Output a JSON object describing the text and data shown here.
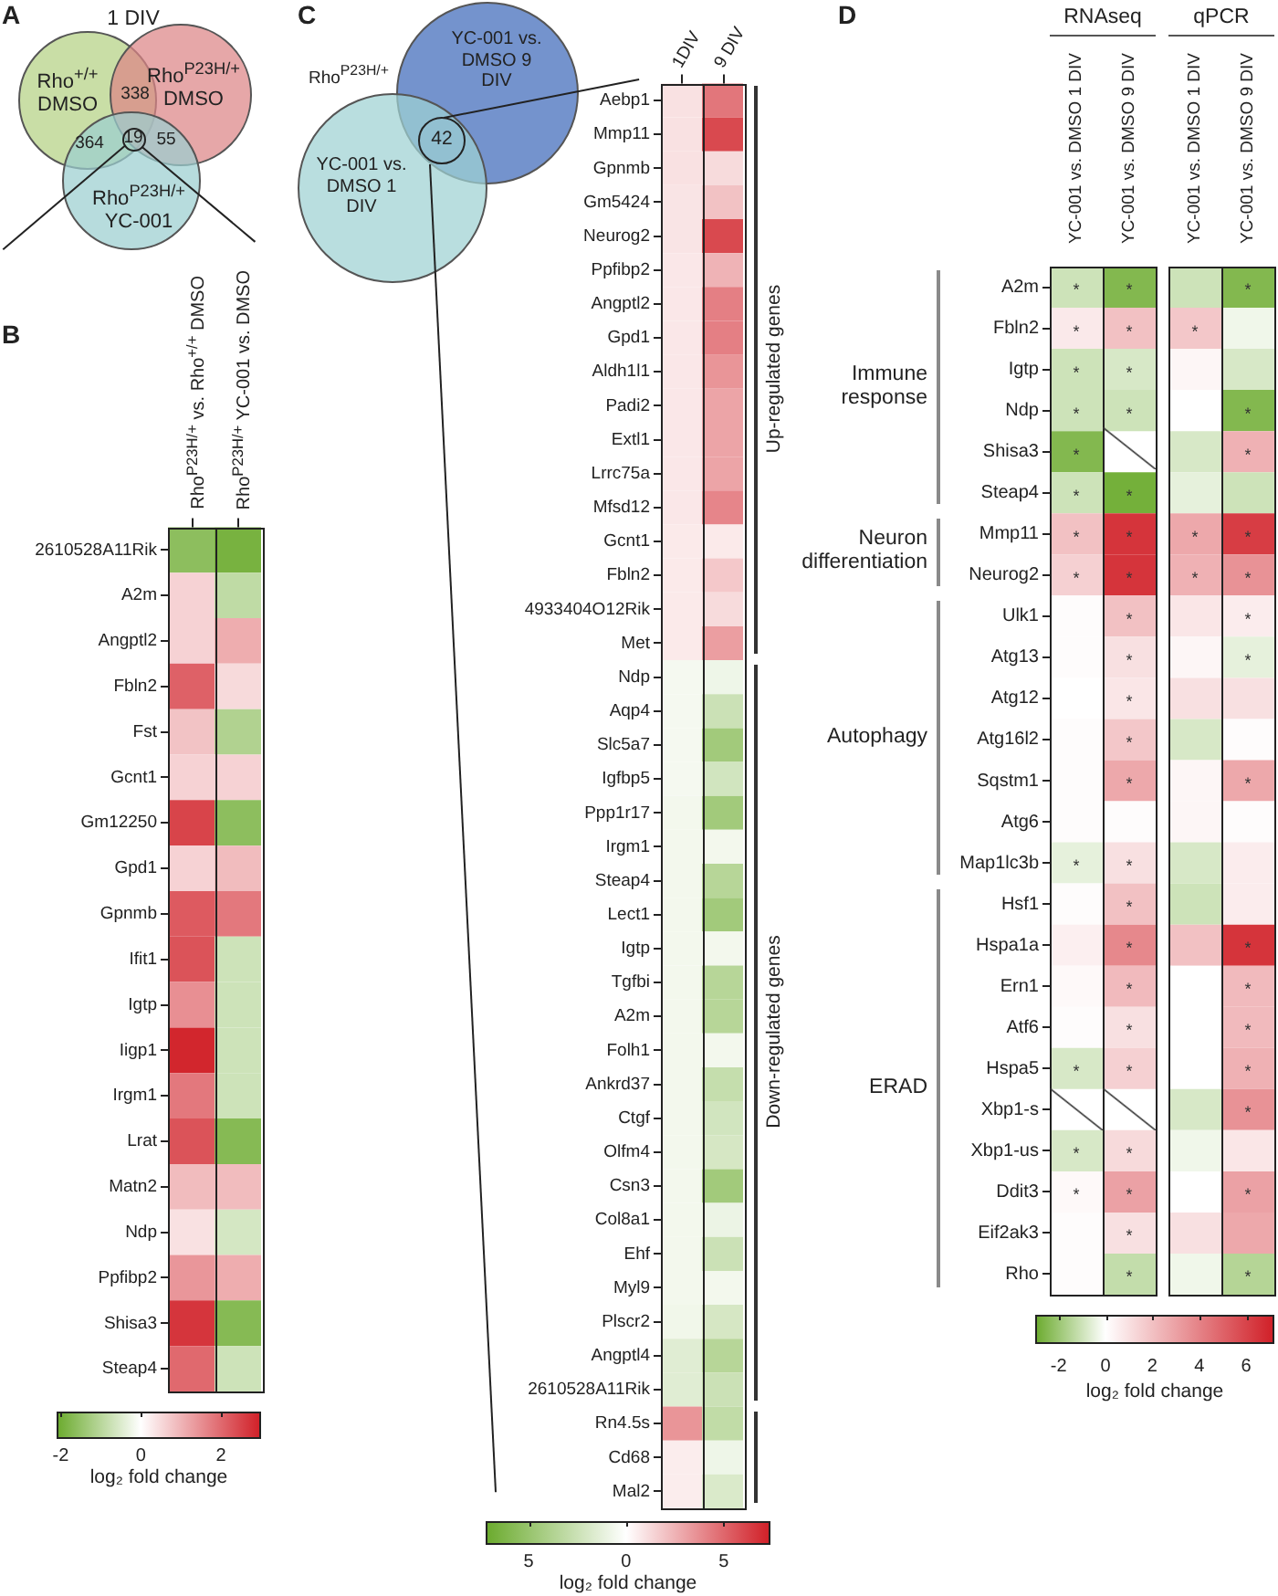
{
  "chart_data": [
    {
      "type": "other",
      "title": "1 DIV",
      "categories": [
        "Rho$^{+/+}$ DMSO",
        "Rho$^{P23H/+}$ DMSO",
        "Rho$^{P23H/+}$ YC-001"
      ],
      "colors": [
        "#c9dea6",
        "#e6a7a8",
        "#b7dcdd"
      ],
      "annotations": [
        "A",
        "338",
        "364",
        "55",
        "19"
      ]
    },
    {
      "type": "heatmap",
      "categories": [
        "Rho$^{P23H/+}$ vs. Rho$^{+/+}$ DMSO",
        "Rho$^{P23H/+}$ YC-001 vs. DMSO"
      ],
      "y_categories": [
        "2610528A11Rik",
        "A2m",
        "Angptl2",
        "Fbln2",
        "Fst",
        "Gcnt1",
        "Gm12250",
        "Gpd1",
        "Gpnmb",
        "Ifit1",
        "Igtp",
        "Iigp1",
        "Irgm1",
        "Lrat",
        "Matn2",
        "Ndp",
        "Ppfibp2",
        "Shisa3",
        "Steap4"
      ],
      "cells": [
        [
          -1.6,
          -1.9
        ],
        [
          0.6,
          -0.9
        ],
        [
          0.6,
          1.1
        ],
        [
          2.1,
          0.5
        ],
        [
          0.8,
          -1.1
        ],
        [
          0.6,
          0.6
        ],
        [
          2.5,
          -1.6
        ],
        [
          0.6,
          0.9
        ],
        [
          2.2,
          1.8
        ],
        [
          2.3,
          -0.7
        ],
        [
          1.5,
          -0.7
        ],
        [
          2.9,
          -0.7
        ],
        [
          1.8,
          -0.7
        ],
        [
          2.3,
          -1.7
        ],
        [
          0.9,
          0.9
        ],
        [
          0.4,
          -0.6
        ],
        [
          1.4,
          1.1
        ],
        [
          2.7,
          -1.7
        ],
        [
          2,
          -0.7
        ]
      ],
      "clim": [
        -2.1,
        3
      ],
      "cticks": [
        -2,
        0,
        2
      ],
      "clabel": "log₂ fold change",
      "annotations": [
        "B"
      ]
    },
    {
      "type": "other",
      "title": "Rho$^{P23H/+}$",
      "categories": [
        "YC-001 vs. DMSO 9 DIV",
        "YC-001 vs. DMSO 1 DIV"
      ],
      "colors": [
        "#7594cd",
        "#b9dedf"
      ],
      "annotations": [
        "C",
        "42"
      ]
    },
    {
      "type": "heatmap",
      "categories": [
        "1DIV",
        "9 DIV"
      ],
      "y_categories": [
        "Aebp1",
        "Mmp11",
        "Gpnmb",
        "Gm5424",
        "Neurog2",
        "Ppfibp2",
        "Angptl2",
        "Gpd1",
        "Aldh1l1",
        "Padi2",
        "Extl1",
        "Lrrc75a",
        "Mfsd12",
        "Gcnt1",
        "Fbln2",
        "4933404O12Rik",
        "Met",
        "Ndp",
        "Aqp4",
        "Slc5a7",
        "Igfbp5",
        "Ppp1r17",
        "Irgm1",
        "Steap4",
        "Lect1",
        "Igtp",
        "Tgfbi",
        "A2m",
        "Folh1",
        "Ankrd37",
        "Ctgf",
        "Olfm4",
        "Csn3",
        "Col8a1",
        "Ehf",
        "Myl9",
        "Plscr2",
        "Angptl4",
        "2610528A11Rik",
        "Rn4.5s",
        "Cd68",
        "Mal2"
      ],
      "cells": [
        [
          1,
          4.5
        ],
        [
          1,
          6
        ],
        [
          1,
          1.2
        ],
        [
          0.9,
          2
        ],
        [
          0.9,
          6
        ],
        [
          0.8,
          2.5
        ],
        [
          0.8,
          4.2
        ],
        [
          0.8,
          4.2
        ],
        [
          0.8,
          3.5
        ],
        [
          0.8,
          3
        ],
        [
          0.8,
          3
        ],
        [
          0.8,
          3
        ],
        [
          0.8,
          4
        ],
        [
          0.7,
          0.7
        ],
        [
          0.7,
          1.8
        ],
        [
          0.7,
          1.2
        ],
        [
          0.7,
          3.2
        ],
        [
          -0.5,
          -0.8
        ],
        [
          -0.5,
          -2.5
        ],
        [
          -0.5,
          -4.5
        ],
        [
          -0.5,
          -2.2
        ],
        [
          -0.6,
          -4.5
        ],
        [
          -0.6,
          -0.6
        ],
        [
          -0.6,
          -3.5
        ],
        [
          -0.6,
          -4.5
        ],
        [
          -0.6,
          -0.6
        ],
        [
          -0.6,
          -3.5
        ],
        [
          -0.6,
          -3.5
        ],
        [
          -0.6,
          -0.6
        ],
        [
          -0.6,
          -2.8
        ],
        [
          -0.6,
          -2.2
        ],
        [
          -0.6,
          -2
        ],
        [
          -0.6,
          -4.5
        ],
        [
          -0.6,
          -0.9
        ],
        [
          -0.6,
          -2.5
        ],
        [
          -0.6,
          -0.6
        ],
        [
          -0.7,
          -2
        ],
        [
          -1.5,
          -3.5
        ],
        [
          -1.5,
          -2.5
        ],
        [
          3.5,
          -3
        ],
        [
          0.6,
          -0.8
        ],
        [
          0.6,
          -1.8
        ]
      ],
      "clim": [
        -7.2,
        7.4
      ],
      "cticks": [
        {
          "value": -5,
          "label": "5"
        },
        0,
        5
      ],
      "clabel": "log₂ fold change",
      "annotations": [
        "Up-regulated genes",
        "Down-regulated genes"
      ]
    },
    {
      "type": "heatmap",
      "categories": [
        "YC-001 vs. DMSO 1 DIV",
        "YC-001 vs. DMSO 9 DIV",
        "YC-001 vs. DMSO 1 DIV",
        "YC-001 vs. DMSO 9 DIV"
      ],
      "y_categories": [
        "A2m",
        "Fbln2",
        "Igtp",
        "Ndp",
        "Shisa3",
        "Steap4",
        "Mmp11",
        "Neurog2",
        "Ulk1",
        "Atg13",
        "Atg12",
        "Atg16l2",
        "Sqstm1",
        "Atg6",
        "Map1lc3b",
        "Hsf1",
        "Hspa1a",
        "Ern1",
        "Atf6",
        "Hspa5",
        "Xbp1-s",
        "Xbp1-us",
        "Ddit3",
        "Eif2ak3",
        "Rho"
      ],
      "cells": [
        [
          -1,
          -2.5,
          -1,
          -2.5
        ],
        [
          0.7,
          2,
          1.8,
          -0.3
        ],
        [
          -1,
          -0.8,
          0.3,
          -0.8
        ],
        [
          -1,
          -1,
          0,
          -2.5
        ],
        [
          -2.5,
          null,
          -0.8,
          2.5
        ],
        [
          -1,
          -2.8,
          -0.5,
          -1
        ],
        [
          2,
          6.5,
          2.8,
          6.2
        ],
        [
          1.5,
          6.5,
          2.5,
          3.5
        ],
        [
          0.1,
          2,
          0.8,
          0.6
        ],
        [
          0.1,
          1,
          0.3,
          -0.5
        ],
        [
          0,
          0.8,
          1,
          1
        ],
        [
          0.1,
          1.8,
          -0.8,
          0.1
        ],
        [
          0.1,
          2.8,
          0.3,
          2.8
        ],
        [
          0.1,
          0.1,
          0.3,
          0.1
        ],
        [
          -0.5,
          1,
          -0.8,
          0.6
        ],
        [
          0.1,
          2,
          -1,
          0.6
        ],
        [
          0.5,
          3.8,
          2,
          6.5
        ],
        [
          0.2,
          2.2,
          0,
          2.2
        ],
        [
          0.1,
          1,
          0,
          2.2
        ],
        [
          -0.8,
          1.5,
          0,
          2.5
        ],
        [
          null,
          null,
          -0.8,
          3.5
        ],
        [
          -0.8,
          1.2,
          -0.3,
          0.8
        ],
        [
          0.2,
          3,
          0,
          3
        ],
        [
          0.1,
          1,
          1,
          2.8
        ],
        [
          0.1,
          -1.2,
          -0.3,
          -1.5
        ]
      ],
      "cell_labels": [
        [
          "*",
          "*",
          null,
          "*"
        ],
        [
          "*",
          "*",
          "*",
          null
        ],
        [
          "*",
          "*",
          null,
          null
        ],
        [
          "*",
          "*",
          null,
          "*"
        ],
        [
          "*",
          null,
          null,
          "*"
        ],
        [
          "*",
          "*",
          null,
          null
        ],
        [
          "*",
          "*",
          "*",
          "*"
        ],
        [
          "*",
          "*",
          "*",
          "*"
        ],
        [
          null,
          "*",
          null,
          "*"
        ],
        [
          null,
          "*",
          null,
          "*"
        ],
        [
          null,
          "*",
          null,
          null
        ],
        [
          null,
          "*",
          null,
          null
        ],
        [
          null,
          "*",
          null,
          "*"
        ],
        [
          null,
          null,
          null,
          null
        ],
        [
          "*",
          "*",
          null,
          null
        ],
        [
          null,
          "*",
          null,
          null
        ],
        [
          null,
          "*",
          null,
          "*"
        ],
        [
          null,
          "*",
          null,
          "*"
        ],
        [
          null,
          "*",
          null,
          "*"
        ],
        [
          "*",
          "*",
          null,
          "*"
        ],
        [
          null,
          null,
          null,
          "*"
        ],
        [
          "*",
          "*",
          null,
          null
        ],
        [
          "*",
          "*",
          null,
          "*"
        ],
        [
          null,
          "*",
          null,
          null
        ],
        [
          null,
          "*",
          null,
          "*"
        ]
      ],
      "clim": [
        -3,
        7.2
      ],
      "cticks": [
        -2,
        0,
        2,
        4,
        6
      ],
      "clabel": "log₂ fold change",
      "annotations": [
        "D",
        "RNAseq",
        "qPCR",
        "Immune response",
        "Neuron differentiation",
        "Autophagy",
        "ERAD"
      ]
    }
  ]
}
